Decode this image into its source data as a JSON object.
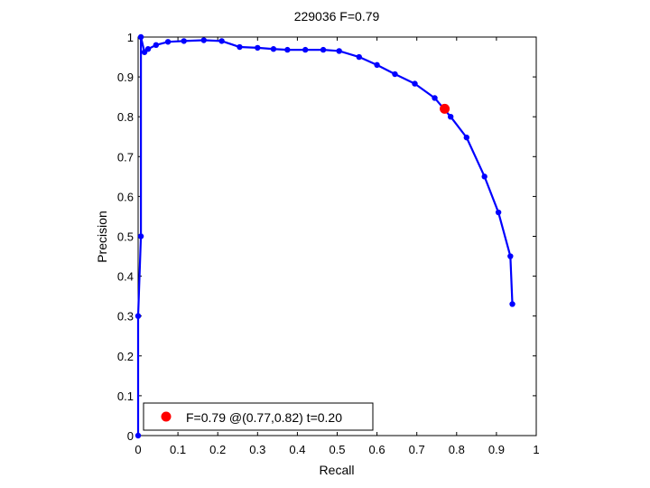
{
  "chart_data": {
    "type": "line",
    "title": "229036 F=0.79",
    "xlabel": "Recall",
    "ylabel": "Precision",
    "xlim": [
      0,
      1
    ],
    "ylim": [
      0,
      1
    ],
    "xticks": [
      "0",
      "0.1",
      "0.2",
      "0.3",
      "0.4",
      "0.5",
      "0.6",
      "0.7",
      "0.8",
      "0.9",
      "1"
    ],
    "yticks": [
      "0",
      "0.1",
      "0.2",
      "0.3",
      "0.4",
      "0.5",
      "0.6",
      "0.7",
      "0.8",
      "0.9",
      "1"
    ],
    "grid": false,
    "legend_position": "bottom-left",
    "colors": {
      "curve": "#0000ff",
      "best_point": "#ff0000",
      "axes": "#000000"
    },
    "series": [
      {
        "x": [
          0.0,
          0.0,
          0.007,
          0.007,
          0.016,
          0.025,
          0.045,
          0.075,
          0.115,
          0.165,
          0.21,
          0.255,
          0.3,
          0.34,
          0.375,
          0.42,
          0.465,
          0.505,
          0.555,
          0.6,
          0.645,
          0.695,
          0.745,
          0.785,
          0.825,
          0.87,
          0.905,
          0.935,
          0.94
        ],
        "y": [
          0.0,
          0.3,
          0.5,
          1.0,
          0.962,
          0.97,
          0.98,
          0.988,
          0.99,
          0.992,
          0.99,
          0.975,
          0.973,
          0.97,
          0.968,
          0.968,
          0.968,
          0.965,
          0.95,
          0.93,
          0.907,
          0.883,
          0.847,
          0.8,
          0.748,
          0.65,
          0.56,
          0.45,
          0.33
        ]
      }
    ],
    "best_point": {
      "x": 0.77,
      "y": 0.82
    },
    "legend": {
      "label": "F=0.79 @(0.77,0.82) t=0.20"
    }
  }
}
